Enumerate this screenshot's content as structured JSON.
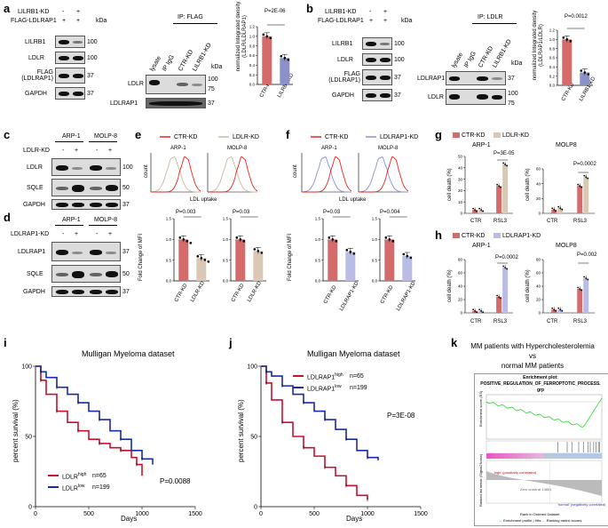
{
  "figure": {
    "panel_labels": [
      "a",
      "b",
      "c",
      "d",
      "e",
      "f",
      "g",
      "h",
      "i",
      "j",
      "k"
    ],
    "units": {
      "kda": "kDa"
    },
    "panel_a": {
      "cond_rows": [
        {
          "label": "LILRB1-KD",
          "marks": [
            "-",
            "+"
          ]
        },
        {
          "label": "FLAG-LDLRAP1",
          "marks": [
            "+",
            "+"
          ]
        }
      ],
      "blots": [
        "LILRB1",
        "LDLR",
        "FLAG (LDLRAP1)",
        "GAPDH"
      ],
      "mw": [
        "100",
        "100",
        "37",
        "37"
      ],
      "ip_title": "IP: FLAG",
      "ip_lanes": [
        "lysate",
        "IP IgG",
        "CTR-KD",
        "LILRB1-KD"
      ],
      "ip_blots": [
        "LDLR",
        "LDLRAP1"
      ],
      "ip_mw": [
        "100",
        "75",
        "37"
      ],
      "bar_pvalue": "P=2E-06",
      "bar_ylabel": "normalized Integrated density (LDLR/LDLRAP1)",
      "bar_categories": [
        "CTR-KD",
        "LILRB1-KD"
      ]
    },
    "panel_b": {
      "cond_rows": [
        {
          "label": "LILRB1-KD",
          "marks": [
            "-",
            "+"
          ]
        },
        {
          "label": "FLAG-LDLRAP1",
          "marks": [
            "+",
            "+"
          ]
        }
      ],
      "blots": [
        "LILRB1",
        "LDLR",
        "FLAG (LDLRAP1)",
        "GAPDH"
      ],
      "mw": [
        "100",
        "100",
        "37",
        "37"
      ],
      "ip_title": "IP: LDLR",
      "ip_lanes": [
        "lysate",
        "IP IgG",
        "CTR-KD",
        "LILRB1-KD"
      ],
      "ip_blots": [
        "LDLRAP1",
        "LDLR"
      ],
      "ip_mw": [
        "37",
        "100",
        "75"
      ],
      "bar_pvalue": "P=0.0012",
      "bar_ylabel": "normalized Integrated density (LDLRAP1/LDLR)",
      "bar_categories": [
        "CTR-KD",
        "LILRB1-KD"
      ]
    },
    "panel_c": {
      "cells": [
        "ARP-1",
        "MOLP-8"
      ],
      "kd_label": "LDLR-KD",
      "marks": [
        "-",
        "+",
        "-",
        "+"
      ],
      "blots": [
        "LDLR",
        "SQLE",
        "GAPDH"
      ],
      "mw": [
        "100",
        "50",
        "37"
      ]
    },
    "panel_d": {
      "cells": [
        "ARP-1",
        "MOLP-8"
      ],
      "kd_label": "LDLRAP1-KD",
      "marks": [
        "-",
        "+",
        "-",
        "+"
      ],
      "blots": [
        "LDLRAP1",
        "SQLE",
        "GAPDH"
      ],
      "mw": [
        "37",
        "50",
        "37"
      ]
    },
    "panel_e": {
      "legend": [
        "CTR-KD",
        "LDLR-KD"
      ],
      "cells": [
        "ARP-1",
        "MOLP-8"
      ],
      "hist_ylabel": "count",
      "hist_xlabel": "LDL uptake",
      "pvalues": [
        "P=0.003",
        "P=0.03"
      ],
      "bar_ylabel": "Fold Change of MFI",
      "bar_categories": [
        "CTR-KD",
        "LDLR-KD"
      ]
    },
    "panel_f": {
      "legend": [
        "CTR-KD",
        "LDLRAP1-KD"
      ],
      "cells": [
        "ARP-1",
        "MOLP-8"
      ],
      "hist_ylabel": "count",
      "hist_xlabel": "LDL uptake",
      "pvalues": [
        "P=0.03",
        "P=0.004"
      ],
      "bar_ylabel": "Fold Change of MFI",
      "bar_categories": [
        "CTR-KD",
        "LDLRAP1-KD"
      ]
    },
    "panel_g": {
      "legend": [
        "CTR-KD",
        "LDLR-KD"
      ],
      "cells": [
        "ARP-1",
        "MOLP8"
      ],
      "ylabel": "cell death (%)",
      "categories": [
        "CTR",
        "RSL3"
      ],
      "pvalues": [
        "P=3E-05",
        "P=0.0002"
      ]
    },
    "panel_h": {
      "legend": [
        "CTR-KD",
        "LDLRAP1-KD"
      ],
      "cells": [
        "ARP-1",
        "MOLP8"
      ],
      "ylabel": "cell death (%)",
      "categories": [
        "CTR",
        "RSL3"
      ],
      "pvalues": [
        "P=0.0002",
        "P=0.002"
      ]
    },
    "panel_i": {
      "title": "Mulligan Myeloma dataset",
      "ylabel": "percent survival (%)",
      "xlabel": "Days",
      "legend": [
        {
          "label": "LDLR",
          "sup": "high",
          "n": "n=65"
        },
        {
          "label": "LDLR",
          "sup": "low",
          "n": "n=199"
        }
      ],
      "pvalue": "P=0.0088"
    },
    "panel_j": {
      "title": "Mulligan Myeloma dataset",
      "ylabel": "percent survival (%)",
      "xlabel": "Days",
      "legend": [
        {
          "label": "LDLRAP1",
          "sup": "high",
          "n": "n=65"
        },
        {
          "label": "LDLRAP1",
          "sup": "low",
          "n": "n=199"
        }
      ],
      "pvalue": "P=3E-08"
    },
    "panel_k": {
      "title_line1": "MM patients with Hypercholesterolemia",
      "title_line2": "vs",
      "title_line3": "normal MM patients",
      "plot_title": "Enrichment plot:",
      "plot_subtitle": "POSITIVE_REGULATION_OF_FERROPTOTIC_PROCESS.",
      "plot_subtitle2": "grp",
      "es_label": "Enrichment score (ES)",
      "metric_label": "Ranked list metric (Signal2Noise)",
      "high_label": "'high' (positively correlated)",
      "low_label": "'normal' (negatively correlated)",
      "zero_cross": "Zero cross at 13851",
      "xlabel": "Rank in Ordered Dataset",
      "legend": [
        "Enrichment profile",
        "Hits",
        "Ranking metric scores"
      ]
    }
  },
  "chart_data": [
    {
      "type": "bar",
      "panel": "a",
      "categories": [
        "CTR-KD",
        "LILRB1-KD"
      ],
      "values": [
        1.0,
        0.55
      ],
      "ylim": [
        0,
        1.2
      ],
      "yticks": [
        "0.0",
        "0.2",
        "0.4",
        "0.6",
        "0.8",
        "1.0",
        "1.2"
      ],
      "title": "",
      "pvalue": "P=2E-06"
    },
    {
      "type": "bar",
      "panel": "b",
      "categories": [
        "CTR-KD",
        "LILRB1-KD"
      ],
      "values": [
        1.0,
        0.28
      ],
      "ylim": [
        0,
        1.2
      ],
      "yticks": [
        "0.0",
        "0.2",
        "0.4",
        "0.6",
        "0.8",
        "1.0",
        "1.2"
      ],
      "pvalue": "P=0.0012"
    },
    {
      "type": "bar",
      "panel": "e-ARP-1",
      "categories": [
        "CTR-KD",
        "LDLR-KD"
      ],
      "values": [
        1.0,
        0.55
      ],
      "ylim": [
        0,
        1.5
      ],
      "yticks": [
        "0.0",
        "0.5",
        "1.0",
        "1.5"
      ]
    },
    {
      "type": "bar",
      "panel": "e-MOLP-8",
      "categories": [
        "CTR-KD",
        "LDLR-KD"
      ],
      "values": [
        1.0,
        0.72
      ],
      "ylim": [
        0,
        1.5
      ],
      "yticks": [
        "0.0",
        "0.5",
        "1.0",
        "1.5"
      ]
    },
    {
      "type": "bar",
      "panel": "f-ARP-1",
      "categories": [
        "CTR-KD",
        "LDLRAP1-KD"
      ],
      "values": [
        1.0,
        0.7
      ],
      "ylim": [
        0,
        1.5
      ],
      "yticks": [
        "0.0",
        "0.5",
        "1.0",
        "1.5"
      ]
    },
    {
      "type": "bar",
      "panel": "f-MOLP-8",
      "categories": [
        "CTR-KD",
        "LDLRAP1-KD"
      ],
      "values": [
        1.0,
        0.6
      ],
      "ylim": [
        0,
        1.5
      ],
      "yticks": [
        "0.0",
        "0.5",
        "1.0",
        "1.5"
      ]
    },
    {
      "type": "bar",
      "panel": "g-ARP-1",
      "categories": [
        "CTR",
        "RSL3"
      ],
      "series": [
        {
          "name": "CTR-KD",
          "values": [
            3,
            24
          ]
        },
        {
          "name": "LDLR-KD",
          "values": [
            3,
            43
          ]
        }
      ],
      "ylim": [
        0,
        50
      ],
      "yticks": [
        "0",
        "10",
        "20",
        "30",
        "40",
        "50"
      ]
    },
    {
      "type": "bar",
      "panel": "g-MOLP8",
      "categories": [
        "CTR",
        "RSL3"
      ],
      "series": [
        {
          "name": "CTR-KD",
          "values": [
            5,
            37
          ]
        },
        {
          "name": "LDLR-KD",
          "values": [
            7,
            49
          ]
        }
      ],
      "ylim": [
        0,
        60
      ],
      "yticks": [
        "0",
        "20",
        "40",
        "60"
      ]
    },
    {
      "type": "bar",
      "panel": "h-ARP-1",
      "categories": [
        "CTR",
        "RSL3"
      ],
      "series": [
        {
          "name": "CTR-KD",
          "values": [
            3,
            24
          ]
        },
        {
          "name": "LDLRAP1-KD",
          "values": [
            3,
            68
          ]
        }
      ],
      "ylim": [
        0,
        80
      ],
      "yticks": [
        "0",
        "20",
        "40",
        "60",
        "80"
      ]
    },
    {
      "type": "bar",
      "panel": "h-MOLP8",
      "categories": [
        "CTR",
        "RSL3"
      ],
      "series": [
        {
          "name": "CTR-KD",
          "values": [
            5,
            36
          ]
        },
        {
          "name": "LDLRAP1-KD",
          "values": [
            5,
            52
          ]
        }
      ],
      "ylim": [
        0,
        80
      ],
      "yticks": [
        "0",
        "20",
        "40",
        "60",
        "80"
      ]
    },
    {
      "type": "line",
      "panel": "i",
      "title": "Mulligan Myeloma dataset",
      "xlabel": "Days",
      "ylabel": "percent survival (%)",
      "xlim": [
        0,
        1500
      ],
      "ylim": [
        0,
        100
      ],
      "xticks": [
        "0",
        "500",
        "1000",
        "1500"
      ],
      "yticks": [
        "0",
        "50",
        "100"
      ],
      "series": [
        {
          "name": "LDLR high",
          "x": [
            0,
            50,
            100,
            200,
            300,
            400,
            500,
            600,
            700,
            800,
            900,
            950,
            1000
          ],
          "y": [
            100,
            90,
            80,
            68,
            60,
            54,
            48,
            45,
            42,
            40,
            35,
            30,
            22
          ]
        },
        {
          "name": "LDLR low",
          "x": [
            0,
            50,
            100,
            200,
            300,
            400,
            500,
            600,
            700,
            800,
            900,
            1000,
            1100
          ],
          "y": [
            100,
            96,
            92,
            85,
            80,
            74,
            68,
            62,
            54,
            48,
            40,
            34,
            30
          ]
        }
      ]
    },
    {
      "type": "line",
      "panel": "j",
      "title": "Mulligan Myeloma dataset",
      "xlabel": "Days",
      "ylabel": "percent survival (%)",
      "xlim": [
        0,
        1500
      ],
      "ylim": [
        0,
        100
      ],
      "xticks": [
        "0",
        "500",
        "1000",
        "1500"
      ],
      "yticks": [
        "0",
        "50",
        "100"
      ],
      "series": [
        {
          "name": "LDLRAP1 high",
          "x": [
            0,
            50,
            100,
            200,
            300,
            400,
            500,
            600,
            700,
            800,
            900,
            1000
          ],
          "y": [
            100,
            88,
            76,
            60,
            50,
            42,
            36,
            28,
            22,
            15,
            8,
            5
          ]
        },
        {
          "name": "LDLRAP1 low",
          "x": [
            0,
            50,
            100,
            200,
            300,
            400,
            500,
            600,
            700,
            800,
            900,
            1000,
            1100
          ],
          "y": [
            100,
            96,
            93,
            86,
            80,
            74,
            68,
            62,
            55,
            48,
            40,
            35,
            33
          ]
        }
      ]
    }
  ]
}
